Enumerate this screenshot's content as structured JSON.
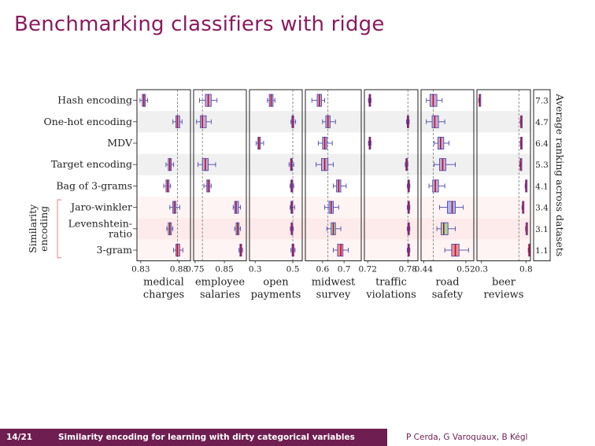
{
  "slide": {
    "title": "Benchmarking classifiers with ridge",
    "footer_page": "14/21",
    "footer_title": "Similarity encoding for learning with dirty categorical variables",
    "footer_authors": "P Cerda, G Varoquaux, B Kégl"
  },
  "chart_data": {
    "type": "boxplot",
    "rows": [
      "Hash encoding",
      "One-hot encoding",
      "MDV",
      "Target encoding",
      "Bag of 3-grams",
      "Jaro-winkler",
      "Levenshtein-ratio",
      "3-gram"
    ],
    "row_labels": [
      [
        "Hash encoding"
      ],
      [
        "One-hot encoding"
      ],
      [
        "MDV"
      ],
      [
        "Target encoding"
      ],
      [
        "Bag of 3-grams"
      ],
      [
        "Jaro-winkler"
      ],
      [
        "Levenshtein-",
        "ratio"
      ],
      [
        "3-gram"
      ]
    ],
    "group_label": [
      "Similarity",
      "encoding"
    ],
    "row_colors": [
      "#c9a9cc",
      "#c9a9cc",
      "#c9a9cc",
      "#c9a9cc",
      "#c9a9cc",
      "#aab8f0",
      "#a8d8a0",
      "#f09090"
    ],
    "right_axis_label": "Average ranking across datasets",
    "average_ranking": [
      "7.3",
      "4.7",
      "6.4",
      "5.3",
      "4.1",
      "3.4",
      "3.1",
      "1.1"
    ],
    "datasets": [
      {
        "name": [
          "medical",
          "charges"
        ],
        "xlim": [
          0.825,
          0.895
        ],
        "ticks": [
          {
            "v": 0.83,
            "label": "0.83"
          },
          {
            "v": 0.88,
            "label": "0.88"
          }
        ],
        "ref": 0.878,
        "boxes": [
          [
            0.829,
            0.832,
            0.834,
            0.836,
            0.839
          ],
          [
            0.872,
            0.876,
            0.878,
            0.881,
            0.884
          ],
          [
            null,
            null,
            null,
            null,
            null
          ],
          [
            0.863,
            0.866,
            0.868,
            0.87,
            0.873
          ],
          [
            0.86,
            0.863,
            0.865,
            0.867,
            0.869
          ],
          [
            0.868,
            0.872,
            0.874,
            0.876,
            0.881
          ],
          [
            0.864,
            0.866,
            0.868,
            0.87,
            0.872
          ],
          [
            0.873,
            0.876,
            0.878,
            0.881,
            0.885
          ]
        ]
      },
      {
        "name": [
          "employee",
          "salaries"
        ],
        "xlim": [
          0.745,
          0.925
        ],
        "ticks": [
          {
            "v": 0.75,
            "label": "0.75"
          },
          {
            "v": 0.85,
            "label": "0.85"
          }
        ],
        "ref": 0.775,
        "boxes": [
          [
            0.765,
            0.785,
            0.795,
            0.805,
            0.825
          ],
          [
            0.755,
            0.768,
            0.775,
            0.788,
            0.805
          ],
          [
            null,
            null,
            null,
            null,
            null
          ],
          [
            0.76,
            0.775,
            0.785,
            0.795,
            0.82
          ],
          [
            0.78,
            0.79,
            0.795,
            0.8,
            0.805
          ],
          [
            0.88,
            0.885,
            0.89,
            0.898,
            0.905
          ],
          [
            0.885,
            0.89,
            0.895,
            0.9,
            0.905
          ],
          [
            0.9,
            0.903,
            0.906,
            0.909,
            0.912
          ]
        ]
      },
      {
        "name": [
          "open",
          "payments"
        ],
        "xlim": [
          0.27,
          0.55
        ],
        "ticks": [
          {
            "v": 0.3,
            "label": "0.3"
          },
          {
            "v": 0.5,
            "label": "0.5"
          }
        ],
        "ref": 0.5,
        "boxes": [
          [
            0.365,
            0.375,
            0.385,
            0.395,
            0.405
          ],
          [
            0.49,
            0.495,
            0.5,
            0.505,
            0.515
          ],
          [
            0.305,
            0.315,
            0.32,
            0.328,
            0.345
          ],
          [
            0.48,
            0.488,
            0.492,
            0.497,
            0.505
          ],
          [
            0.485,
            0.49,
            0.495,
            0.5,
            0.505
          ],
          [
            0.485,
            0.49,
            0.495,
            0.5,
            0.51
          ],
          [
            0.487,
            0.491,
            0.494,
            0.498,
            0.503
          ],
          [
            0.49,
            0.496,
            0.5,
            0.506,
            0.512
          ]
        ]
      },
      {
        "name": [
          "midwest",
          "survey"
        ],
        "xlim": [
          0.52,
          0.78
        ],
        "ticks": [
          {
            "v": 0.6,
            "label": "0.6"
          },
          {
            "v": 0.7,
            "label": "0.7"
          }
        ],
        "ref": 0.625,
        "boxes": [
          [
            0.55,
            0.575,
            0.585,
            0.595,
            0.61
          ],
          [
            0.6,
            0.615,
            0.625,
            0.635,
            0.66
          ],
          [
            0.58,
            0.6,
            0.61,
            0.62,
            0.645
          ],
          [
            0.57,
            0.595,
            0.61,
            0.625,
            0.65
          ],
          [
            0.65,
            0.665,
            0.675,
            0.685,
            0.71
          ],
          [
            0.61,
            0.63,
            0.64,
            0.65,
            0.675
          ],
          [
            0.62,
            0.64,
            0.65,
            0.66,
            0.685
          ],
          [
            0.65,
            0.67,
            0.685,
            0.695,
            0.72
          ]
        ]
      },
      {
        "name": [
          "traffic",
          "violations"
        ],
        "xlim": [
          0.715,
          0.795
        ],
        "ticks": [
          {
            "v": 0.72,
            "label": "0.72"
          },
          {
            "v": 0.78,
            "label": "0.78"
          }
        ],
        "ref": 0.78,
        "boxes": [
          [
            0.721,
            0.722,
            0.723,
            0.724,
            0.725
          ],
          [
            0.778,
            0.779,
            0.78,
            0.781,
            0.782
          ],
          [
            0.721,
            0.722,
            0.723,
            0.724,
            0.725
          ],
          [
            0.776,
            0.777,
            0.778,
            0.779,
            0.78
          ],
          [
            0.779,
            0.78,
            0.781,
            0.782,
            0.783
          ],
          [
            0.779,
            0.78,
            0.781,
            0.782,
            0.783
          ],
          [
            0.779,
            0.78,
            0.781,
            0.782,
            0.783
          ],
          [
            0.779,
            0.78,
            0.781,
            0.782,
            0.783
          ]
        ]
      },
      {
        "name": [
          "road",
          "safety"
        ],
        "xlim": [
          0.435,
          0.535
        ],
        "ticks": [
          {
            "v": 0.44,
            "label": "0.44"
          },
          {
            "v": 0.52,
            "label": "0.52"
          }
        ],
        "ref": 0.458,
        "boxes": [
          [
            0.445,
            0.452,
            0.458,
            0.465,
            0.475
          ],
          [
            0.445,
            0.456,
            0.461,
            0.468,
            0.48
          ],
          [
            0.46,
            0.467,
            0.472,
            0.478,
            0.488
          ],
          [
            0.46,
            0.47,
            0.476,
            0.482,
            0.5
          ],
          [
            0.45,
            0.457,
            0.462,
            0.468,
            0.48
          ],
          [
            0.47,
            0.485,
            0.494,
            0.5,
            0.515
          ],
          [
            0.465,
            0.473,
            0.478,
            0.486,
            0.5
          ],
          [
            0.48,
            0.493,
            0.5,
            0.507,
            0.525
          ]
        ]
      },
      {
        "name": [
          "beer",
          "reviews"
        ],
        "xlim": [
          0.25,
          0.85
        ],
        "ticks": [
          {
            "v": 0.3,
            "label": "0.3"
          },
          {
            "v": 0.8,
            "label": "0.8"
          }
        ],
        "ref": 0.72,
        "boxes": [
          [
            0.27,
            0.275,
            0.28,
            0.285,
            0.29
          ],
          [
            0.735,
            0.74,
            0.745,
            0.75,
            0.755
          ],
          [
            0.735,
            0.74,
            0.745,
            0.75,
            0.755
          ],
          [
            0.73,
            0.735,
            0.74,
            0.745,
            0.75
          ],
          [
            0.79,
            0.795,
            0.8,
            0.805,
            0.81
          ],
          [
            0.755,
            0.76,
            0.765,
            0.77,
            0.775
          ],
          [
            0.795,
            0.8,
            0.805,
            0.81,
            0.815
          ],
          [
            0.825,
            0.83,
            0.835,
            0.84,
            0.845
          ]
        ]
      }
    ]
  }
}
